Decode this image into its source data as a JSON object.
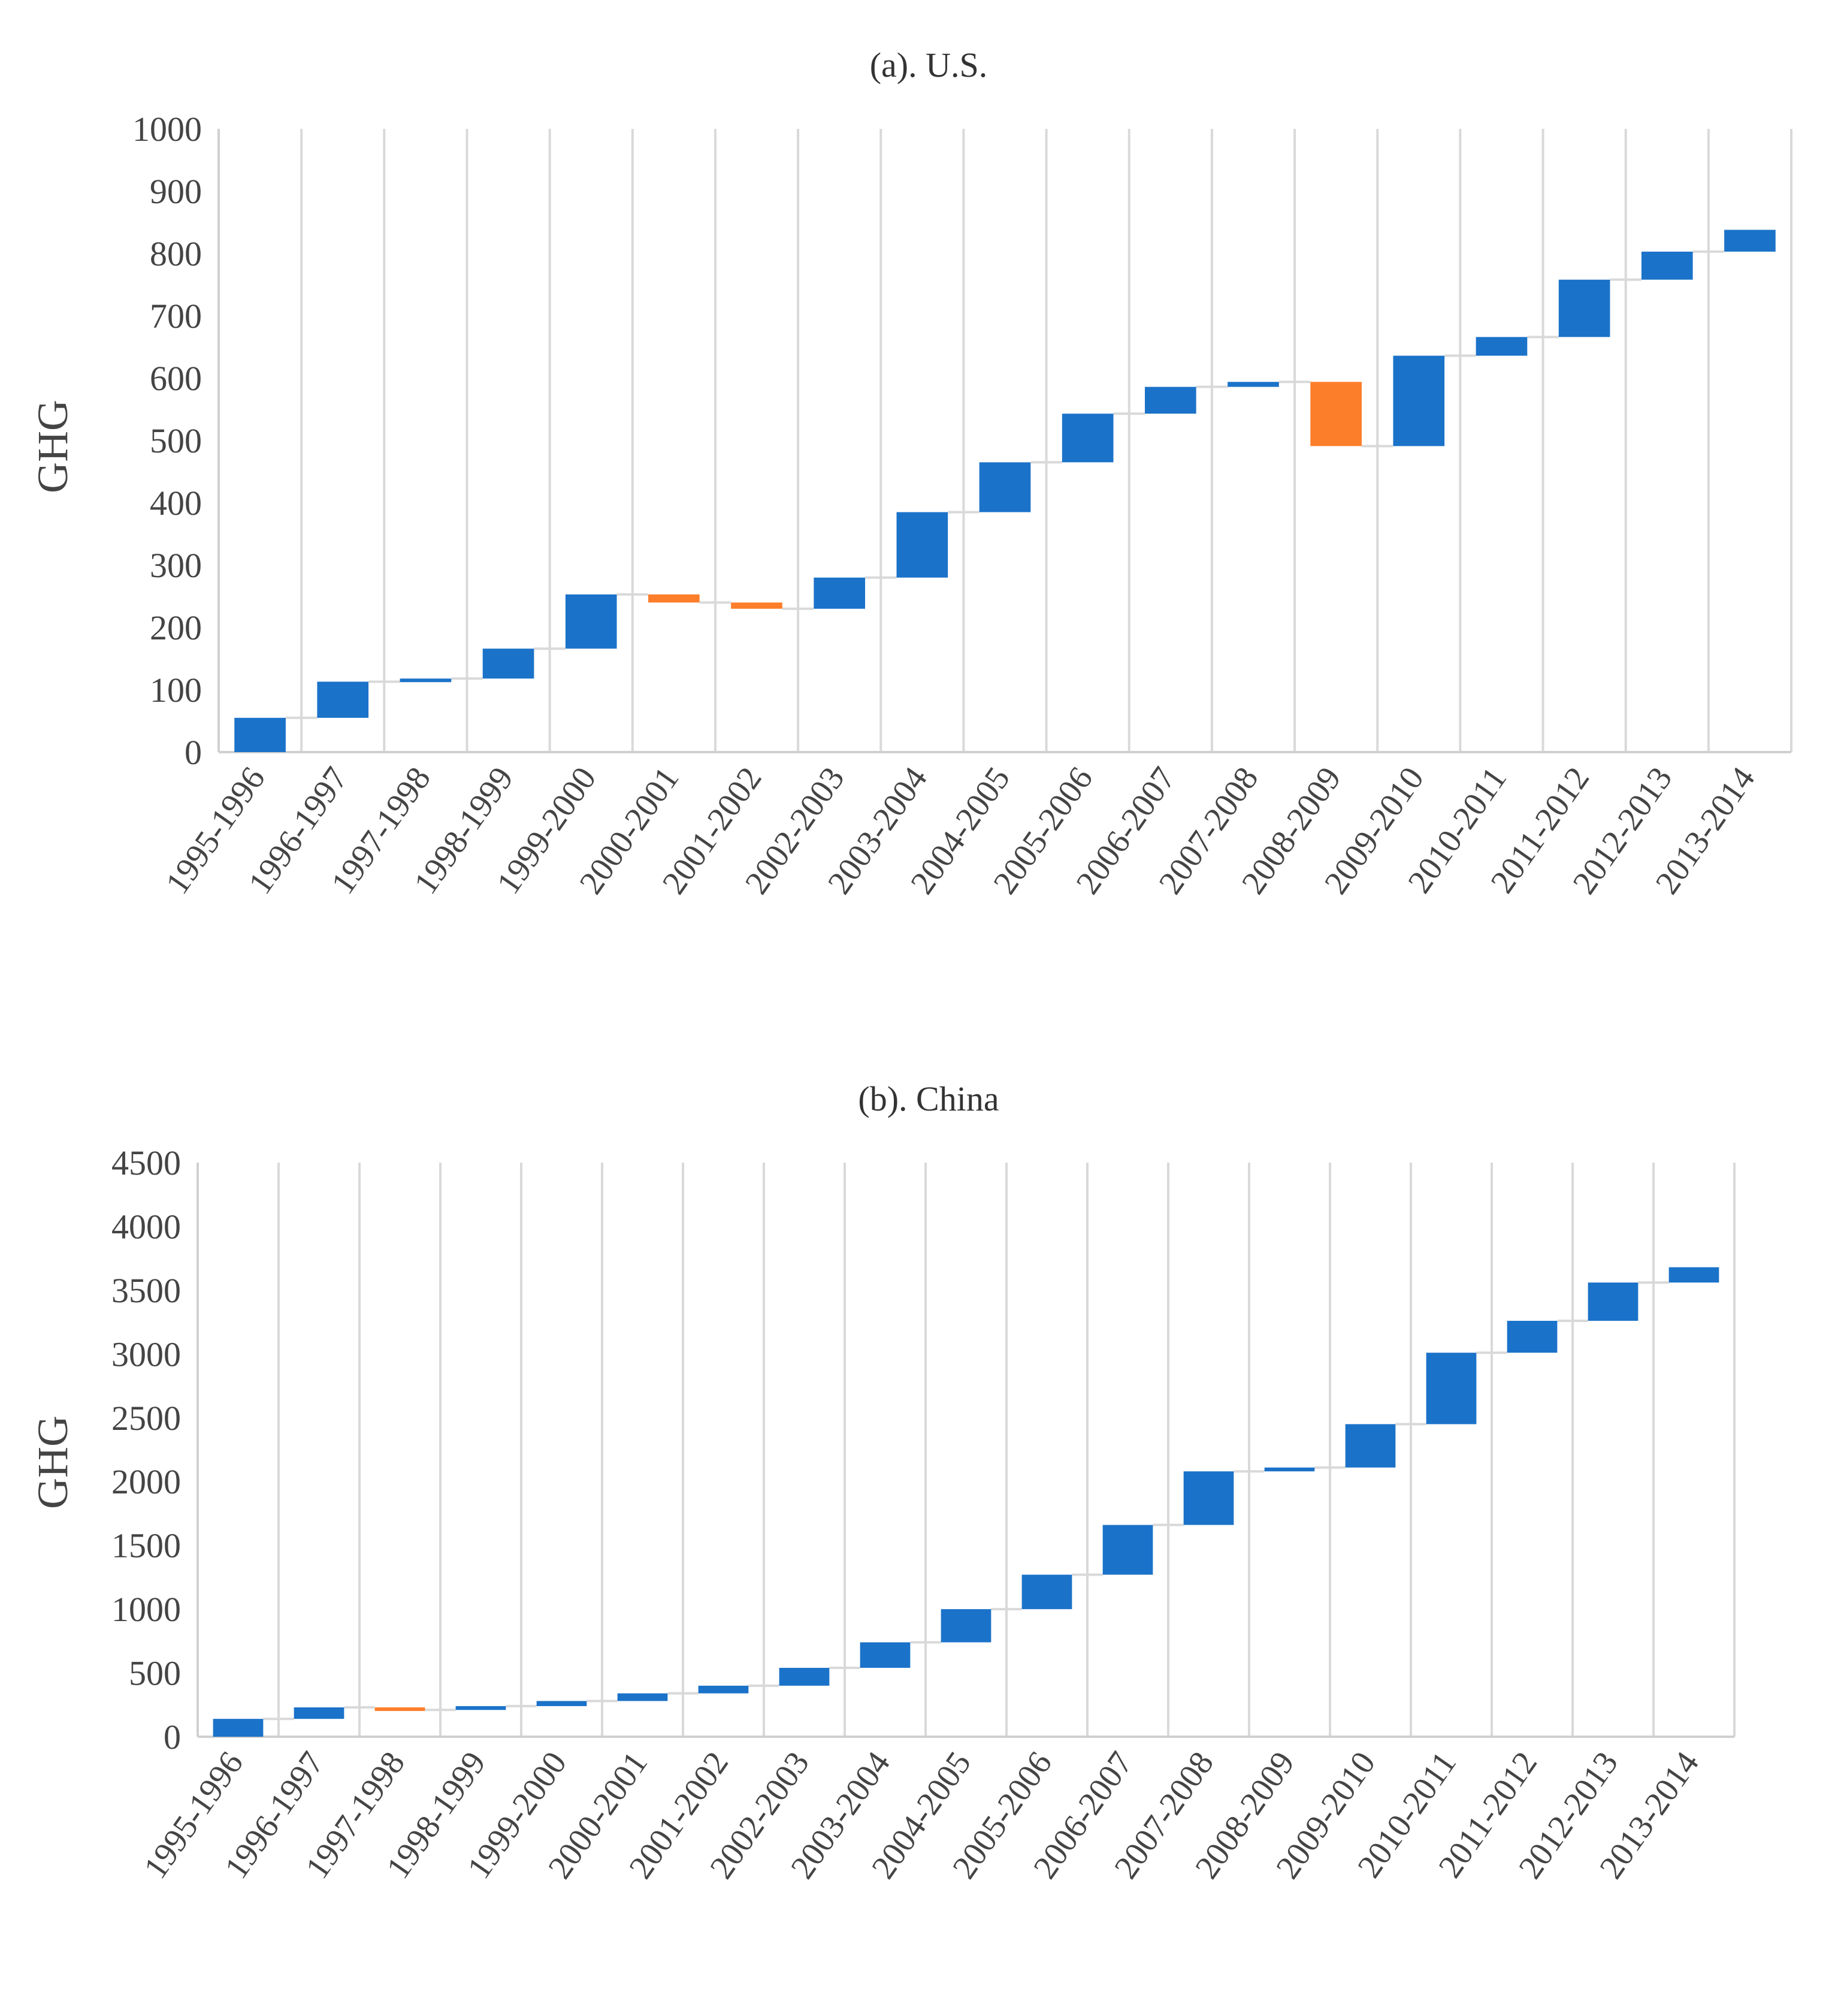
{
  "colors": {
    "increase": "#1b72c9",
    "decrease": "#fd7e2a",
    "grid": "#d9d9d9"
  },
  "chart_data": [
    {
      "id": "us",
      "type": "waterfall",
      "title": "(a). U.S.",
      "xlabel": "",
      "ylabel": "GHG",
      "ylim": [
        0,
        1000
      ],
      "ytick_step": 100,
      "categories": [
        "1995-1996",
        "1996-1997",
        "1997-1998",
        "1998-1999",
        "1999-2000",
        "2000-2001",
        "2001-2002",
        "2002-2003",
        "2003-2004",
        "2004-2005",
        "2005-2006",
        "2006-2007",
        "2007-2008",
        "2008-2009",
        "2009-2010",
        "2010-2011",
        "2011-2012",
        "2012-2013",
        "2013-2014"
      ],
      "values": [
        55,
        58,
        5,
        48,
        87,
        -13,
        -10,
        50,
        105,
        80,
        78,
        43,
        8,
        -103,
        145,
        30,
        92,
        45,
        35
      ],
      "cumulative": [
        55,
        113,
        118,
        166,
        253,
        240,
        230,
        280,
        385,
        465,
        543,
        586,
        594,
        491,
        636,
        666,
        758,
        803,
        838
      ]
    },
    {
      "id": "china",
      "type": "waterfall",
      "title": "(b). China",
      "xlabel": "",
      "ylabel": "GHG",
      "ylim": [
        0,
        4500
      ],
      "ytick_step": 500,
      "categories": [
        "1995-1996",
        "1996-1997",
        "1997-1998",
        "1998-1999",
        "1999-2000",
        "2000-2001",
        "2001-2002",
        "2002-2003",
        "2003-2004",
        "2004-2005",
        "2005-2006",
        "2006-2007",
        "2007-2008",
        "2008-2009",
        "2009-2010",
        "2010-2011",
        "2011-2012",
        "2012-2013",
        "2013-2014"
      ],
      "values": [
        140,
        90,
        -20,
        30,
        40,
        60,
        60,
        140,
        200,
        260,
        270,
        390,
        420,
        30,
        340,
        560,
        250,
        300,
        120
      ],
      "cumulative": [
        140,
        230,
        210,
        240,
        280,
        340,
        400,
        540,
        740,
        1000,
        1270,
        1660,
        2080,
        2110,
        2450,
        3010,
        3260,
        3560,
        3680
      ]
    }
  ]
}
